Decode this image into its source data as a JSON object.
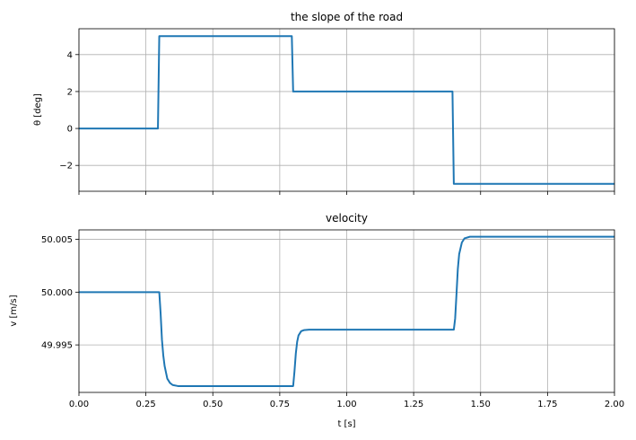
{
  "chart_data": [
    {
      "type": "line",
      "title": "the slope of the road",
      "ylabel": "θ [deg]",
      "xlabel": "",
      "xlim": [
        0,
        2
      ],
      "ylim": [
        -3.4,
        5.4
      ],
      "grid": true,
      "x_ticks": [
        0,
        0.25,
        0.5,
        0.75,
        1.0,
        1.25,
        1.5,
        1.75,
        2.0
      ],
      "x_tick_labels_visible": false,
      "y_ticks": [
        {
          "value": 4,
          "label": "4"
        },
        {
          "value": 2,
          "label": "2"
        },
        {
          "value": 0,
          "label": "0"
        },
        {
          "value": -2,
          "label": "−2"
        }
      ],
      "color": "#1f77b4",
      "series": [
        {
          "x": [
            0,
            0.295,
            0.3,
            0.795,
            0.8,
            1.395,
            1.4,
            2.0
          ],
          "y": [
            0,
            0,
            5,
            5,
            2,
            2,
            -3,
            -3
          ]
        }
      ]
    },
    {
      "type": "line",
      "title": "velocity",
      "ylabel": "v [m/s]",
      "xlabel": "t [s]",
      "xlim": [
        0,
        2
      ],
      "ylim": [
        49.9905,
        50.0059
      ],
      "grid": true,
      "x_ticks": [
        {
          "value": 0,
          "label": "0.00"
        },
        {
          "value": 0.25,
          "label": "0.25"
        },
        {
          "value": 0.5,
          "label": "0.50"
        },
        {
          "value": 0.75,
          "label": "0.75"
        },
        {
          "value": 1.0,
          "label": "1.00"
        },
        {
          "value": 1.25,
          "label": "1.25"
        },
        {
          "value": 1.5,
          "label": "1.50"
        },
        {
          "value": 1.75,
          "label": "1.75"
        },
        {
          "value": 2.0,
          "label": "2.00"
        }
      ],
      "y_ticks": [
        {
          "value": 50.005,
          "label": "50.005"
        },
        {
          "value": 50.0,
          "label": "50.000"
        },
        {
          "value": 49.995,
          "label": "49.995"
        }
      ],
      "color": "#1f77b4",
      "series": [
        {
          "x": [
            0,
            0.3,
            0.305,
            0.31,
            0.315,
            0.32,
            0.33,
            0.34,
            0.35,
            0.37,
            0.4,
            0.8,
            0.805,
            0.81,
            0.815,
            0.82,
            0.83,
            0.84,
            0.86,
            0.9,
            1.4,
            1.405,
            1.41,
            1.415,
            1.42,
            1.43,
            1.44,
            1.46,
            1.5,
            2.0
          ],
          "y": [
            50.0,
            50.0,
            49.998,
            49.9955,
            49.994,
            49.993,
            49.9918,
            49.9914,
            49.9912,
            49.9911,
            49.9911,
            49.9911,
            49.9925,
            49.9942,
            49.9953,
            49.9959,
            49.9963,
            49.9964,
            49.99645,
            49.99645,
            49.99645,
            49.9975,
            49.9998,
            50.0022,
            50.0036,
            50.0047,
            50.0051,
            50.00525,
            50.00525,
            50.00525
          ]
        }
      ]
    }
  ]
}
